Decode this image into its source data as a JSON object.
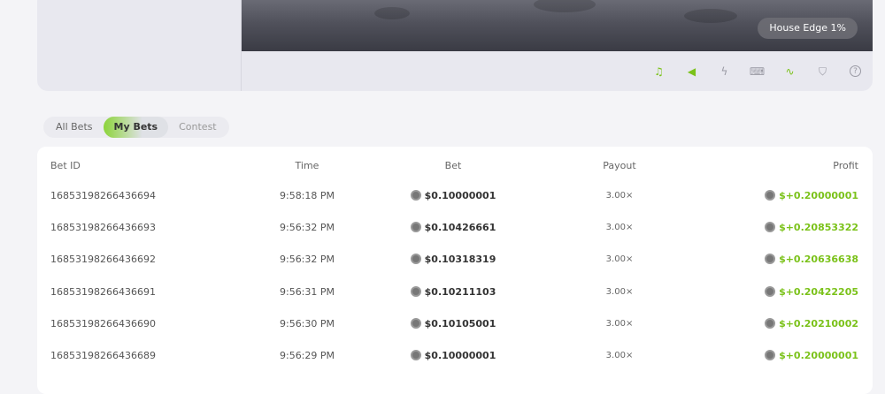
{
  "game": {
    "house_edge": "House Edge 1%"
  },
  "toolbar": {
    "icons": [
      {
        "name": "music-icon",
        "glyph": "♫",
        "active": true
      },
      {
        "name": "sound-icon",
        "glyph": "◀",
        "active": true
      },
      {
        "name": "lightning-icon",
        "glyph": "ϟ",
        "active": false
      },
      {
        "name": "keyboard-icon",
        "glyph": "⌨",
        "active": false
      },
      {
        "name": "chart-icon",
        "glyph": "∿",
        "active": true
      },
      {
        "name": "fairness-icon",
        "glyph": "⛉",
        "active": false
      },
      {
        "name": "help-icon",
        "glyph": "?",
        "active": false
      }
    ]
  },
  "colors": {
    "accent": "#7bc21a"
  },
  "tabs": {
    "all": "All Bets",
    "my": "My Bets",
    "contest": "Contest",
    "active": "My Bets"
  },
  "table": {
    "headers": {
      "id": "Bet ID",
      "time": "Time",
      "bet": "Bet",
      "payout": "Payout",
      "profit": "Profit"
    },
    "rows": [
      {
        "id": "16853198266436694",
        "time": "9:58:18 PM",
        "bet": "$0.10000001",
        "payout": "3.00×",
        "profit": "$+0.20000001"
      },
      {
        "id": "16853198266436693",
        "time": "9:56:32 PM",
        "bet": "$0.10426661",
        "payout": "3.00×",
        "profit": "$+0.20853322"
      },
      {
        "id": "16853198266436692",
        "time": "9:56:32 PM",
        "bet": "$0.10318319",
        "payout": "3.00×",
        "profit": "$+0.20636638"
      },
      {
        "id": "16853198266436691",
        "time": "9:56:31 PM",
        "bet": "$0.10211103",
        "payout": "3.00×",
        "profit": "$+0.20422205"
      },
      {
        "id": "16853198266436690",
        "time": "9:56:30 PM",
        "bet": "$0.10105001",
        "payout": "3.00×",
        "profit": "$+0.20210002"
      },
      {
        "id": "16853198266436689",
        "time": "9:56:29 PM",
        "bet": "$0.10000001",
        "payout": "3.00×",
        "profit": "$+0.20000001"
      }
    ]
  }
}
